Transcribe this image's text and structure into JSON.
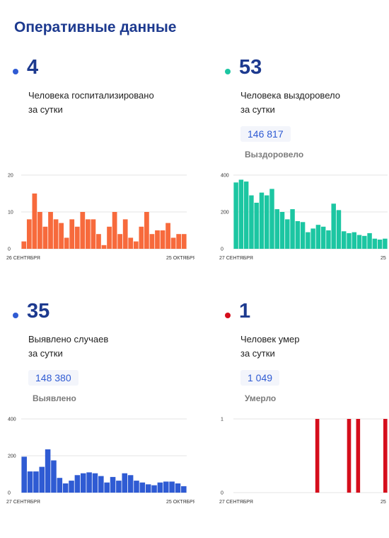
{
  "page": {
    "title": "Оперативные данные"
  },
  "panels": [
    {
      "dot_color": "#2f5bd3",
      "number": "4",
      "caption_line1": "Человека госпитализировано",
      "caption_line2": "за сутки",
      "total_value": "",
      "total_label": ""
    },
    {
      "dot_color": "#1cc6a2",
      "number": "53",
      "caption_line1": "Человека выздоровело",
      "caption_line2": "за сутки",
      "total_value": "146 817",
      "total_label": "Выздоровело"
    },
    {
      "dot_color": "#2f5bd3",
      "number": "35",
      "caption_line1": "Выявлено случаев",
      "caption_line2": "за сутки",
      "total_value": "148 380",
      "total_label": "Выявлено"
    },
    {
      "dot_color": "#d50e1c",
      "number": "1",
      "caption_line1": "Человек умер",
      "caption_line2": "за сутки",
      "total_value": "1 049",
      "total_label": "Умерло"
    }
  ],
  "chart_data": [
    {
      "type": "bar",
      "color": "#f76a3c",
      "ylim": [
        0,
        20
      ],
      "yticks": [
        0,
        10,
        20
      ],
      "x_start_label": "26 СЕНТЯБРЯ",
      "x_end_label": "25 ОКТЯБРЯ",
      "values": [
        2,
        8,
        15,
        10,
        6,
        10,
        8,
        7,
        3,
        8,
        6,
        10,
        8,
        8,
        4,
        1,
        6,
        10,
        4,
        8,
        3,
        2,
        6,
        10,
        4,
        5,
        5,
        7,
        3,
        4,
        4
      ]
    },
    {
      "type": "bar",
      "color": "#1cc6a2",
      "ylim": [
        0,
        400
      ],
      "yticks": [
        0,
        200,
        400
      ],
      "x_start_label": "27 СЕНТЯБРЯ",
      "x_end_label": "25",
      "values": [
        360,
        375,
        365,
        290,
        250,
        305,
        290,
        325,
        215,
        200,
        160,
        215,
        150,
        145,
        90,
        110,
        130,
        120,
        100,
        245,
        210,
        95,
        85,
        90,
        75,
        70,
        85,
        55,
        50,
        55
      ]
    },
    {
      "type": "bar",
      "color": "#2f5bd3",
      "ylim": [
        0,
        400
      ],
      "yticks": [
        0,
        200,
        400
      ],
      "x_start_label": "27 СЕНТЯБРЯ",
      "x_end_label": "25 ОКТЯБРЯ",
      "values": [
        195,
        115,
        115,
        140,
        235,
        175,
        80,
        50,
        65,
        95,
        105,
        110,
        105,
        90,
        55,
        85,
        65,
        105,
        95,
        65,
        55,
        45,
        40,
        55,
        60,
        60,
        50,
        35
      ]
    },
    {
      "type": "bar",
      "color": "#d50e1c",
      "ylim": [
        0,
        1
      ],
      "yticks": [
        0,
        1
      ],
      "x_start_label": "27 СЕНТЯБРЯ",
      "x_end_label": "25",
      "values": [
        0,
        0,
        0,
        0,
        0,
        0,
        0,
        0,
        0,
        0,
        0,
        0,
        0,
        0,
        0,
        0,
        0,
        0,
        1,
        0,
        0,
        0,
        0,
        0,
        0,
        1,
        0,
        1,
        0,
        0,
        0,
        0,
        0,
        1
      ]
    }
  ]
}
